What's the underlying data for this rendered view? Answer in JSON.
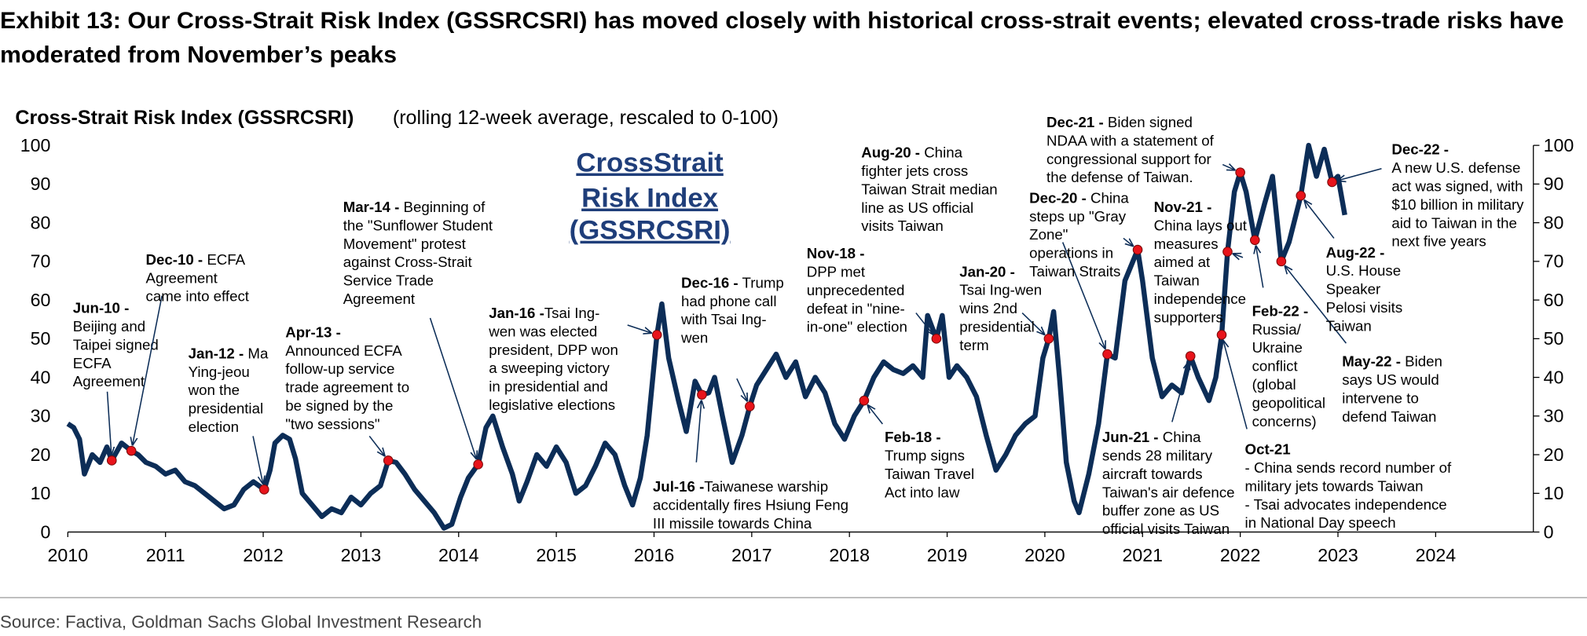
{
  "chart_data": {
    "type": "line",
    "title": [
      "Exhibit 13: Our Cross-Strait Risk Index (GSSRCSRI) has moved closely with historical cross-strait events; elevated cross-trade risks have",
      "moderated from November’s peaks"
    ],
    "chart_title": "Cross-Strait Risk Index (GSSRCSRI)",
    "chart_subtitle": "(rolling 12-week average, rescaled to 0-100)",
    "inset_label": [
      "CrossStrait",
      "Risk Index",
      "(GSSRCSRI)"
    ],
    "source": "Source: Factiva, Goldman Sachs Global Investment Research",
    "color": "#0c2d57",
    "marker_color": "#e8141b",
    "xlim": [
      2010,
      2025
    ],
    "xticks": [
      2010,
      2011,
      2012,
      2013,
      2014,
      2015,
      2016,
      2017,
      2018,
      2019,
      2020,
      2021,
      2022,
      2023,
      2024
    ],
    "ylim": [
      0,
      100
    ],
    "yticks": [
      0,
      10,
      20,
      30,
      40,
      50,
      60,
      70,
      80,
      90,
      100
    ],
    "y2lim": [
      0,
      100
    ],
    "y2ticks": [
      0,
      10,
      20,
      30,
      40,
      50,
      60,
      70,
      80,
      90,
      100
    ],
    "x": [
      2010.0,
      2010.06,
      2010.12,
      2010.17,
      2010.25,
      2010.33,
      2010.4,
      2010.45,
      2010.55,
      2010.65,
      2010.72,
      2010.8,
      2010.9,
      2011.0,
      2011.1,
      2011.2,
      2011.3,
      2011.4,
      2011.5,
      2011.6,
      2011.7,
      2011.8,
      2011.9,
      2012.01,
      2012.07,
      2012.12,
      2012.2,
      2012.27,
      2012.33,
      2012.4,
      2012.5,
      2012.6,
      2012.7,
      2012.8,
      2012.9,
      2013.0,
      2013.1,
      2013.2,
      2013.28,
      2013.36,
      2013.45,
      2013.55,
      2013.65,
      2013.75,
      2013.85,
      2013.93,
      2014.02,
      2014.1,
      2014.2,
      2014.28,
      2014.35,
      2014.45,
      2014.55,
      2014.62,
      2014.7,
      2014.8,
      2014.9,
      2015.0,
      2015.1,
      2015.2,
      2015.3,
      2015.4,
      2015.5,
      2015.6,
      2015.7,
      2015.78,
      2015.86,
      2015.93,
      2016.03,
      2016.08,
      2016.15,
      2016.25,
      2016.33,
      2016.42,
      2016.49,
      2016.56,
      2016.62,
      2016.7,
      2016.8,
      2016.9,
      2016.98,
      2017.05,
      2017.15,
      2017.25,
      2017.35,
      2017.45,
      2017.55,
      2017.65,
      2017.75,
      2017.85,
      2017.95,
      2018.05,
      2018.15,
      2018.25,
      2018.35,
      2018.45,
      2018.55,
      2018.65,
      2018.75,
      2018.8,
      2018.89,
      2018.95,
      2019.02,
      2019.1,
      2019.2,
      2019.3,
      2019.4,
      2019.5,
      2019.6,
      2019.7,
      2019.8,
      2019.9,
      2019.98,
      2020.04,
      2020.09,
      2020.15,
      2020.22,
      2020.3,
      2020.35,
      2020.45,
      2020.55,
      2020.64,
      2020.72,
      2020.82,
      2020.95,
      2021.0,
      2021.1,
      2021.2,
      2021.3,
      2021.4,
      2021.49,
      2021.57,
      2021.68,
      2021.75,
      2021.81,
      2021.87,
      2021.94,
      2022.0,
      2022.06,
      2022.15,
      2022.25,
      2022.33,
      2022.42,
      2022.5,
      2022.57,
      2022.62,
      2022.7,
      2022.78,
      2022.86,
      2022.94,
      2023.0,
      2023.07
    ],
    "values": [
      28,
      27,
      24,
      15,
      20,
      18,
      22,
      18.5,
      23,
      21,
      20,
      18,
      17,
      15,
      16,
      13,
      12,
      10,
      8,
      6,
      7,
      11,
      13,
      11,
      16,
      23,
      25,
      24,
      19,
      10,
      7,
      4,
      6,
      5,
      9,
      7,
      10,
      12,
      18.5,
      18,
      15,
      11,
      8,
      5,
      1,
      2,
      9,
      14,
      17.5,
      27,
      30,
      22,
      15,
      8,
      13,
      20,
      17,
      22,
      18,
      10,
      12,
      17,
      23,
      20,
      12,
      7,
      14,
      25,
      51,
      59,
      45,
      34,
      26,
      39,
      35.5,
      36,
      40,
      30,
      18,
      25,
      32.5,
      38,
      42,
      46,
      40,
      44,
      35,
      40,
      36,
      28,
      24,
      30,
      34,
      40,
      44,
      42,
      41,
      43,
      40,
      56,
      50,
      56,
      40,
      43,
      40,
      35,
      25,
      16,
      20,
      25,
      28,
      30,
      45,
      50,
      57,
      40,
      18,
      8,
      5,
      15,
      28,
      46,
      45,
      65,
      73,
      65,
      45,
      35,
      38,
      36,
      45.5,
      40,
      34,
      40,
      51,
      72.5,
      88,
      93,
      88,
      75.5,
      85,
      92,
      70,
      75,
      82,
      87,
      100,
      92,
      99,
      90.5,
      92,
      82
    ],
    "annotations": [
      {
        "label": "Jun-10 -",
        "lines": [
          "Beijing and",
          "Taipei signed",
          "ECFA",
          "Agreement"
        ],
        "x": 2010.45,
        "y": 18.5
      },
      {
        "label": "Dec-10 -",
        "rest": " ECFA",
        "lines": [
          "Agreement",
          "came into effect"
        ],
        "x": 2010.65,
        "y": 21
      },
      {
        "label": "Jan-12 -",
        "rest": " Ma",
        "lines": [
          "Ying-jeou",
          "won the",
          "presidential",
          "election"
        ],
        "x": 2012.01,
        "y": 11
      },
      {
        "label": "Apr-13 -",
        "lines": [
          "Announced ECFA",
          "follow-up service",
          "trade agreement to",
          "be signed by the",
          "\"two sessions\""
        ],
        "x": 2013.28,
        "y": 18.5
      },
      {
        "label": "Mar-14 -",
        "rest": " Beginning of",
        "lines": [
          "the \"Sunflower Student",
          "Movement\" protest",
          "against Cross-Strait",
          "Service Trade",
          "Agreement"
        ],
        "x": 2014.2,
        "y": 17.5
      },
      {
        "label": "Jan-16 -",
        "rest": "Tsai Ing-",
        "lines": [
          "wen was elected",
          "president, DPP won",
          "a sweeping victory",
          "in presidential and",
          "legislative elections"
        ],
        "x": 2016.03,
        "y": 51
      },
      {
        "label": "Jul-16 -",
        "rest": "Taiwanese warship",
        "lines": [
          "accidentally fires Hsiung Feng",
          "III missile towards China"
        ],
        "x": 2016.49,
        "y": 35.5
      },
      {
        "label": "Dec-16 -",
        "rest": " Trump",
        "lines": [
          "had phone call",
          "with Tsai Ing-",
          "wen"
        ],
        "x": 2016.98,
        "y": 32.5
      },
      {
        "label": "Feb-18 -",
        "lines": [
          "Trump signs",
          "Taiwan Travel",
          "Act into law"
        ],
        "x": 2018.15,
        "y": 34
      },
      {
        "label": "Nov-18 -",
        "lines": [
          "DPP met",
          "unprecedented",
          "defeat in \"nine-",
          "in-one\" election"
        ],
        "x": 2018.89,
        "y": 50
      },
      {
        "label": "Jan-20 -",
        "lines": [
          "Tsai Ing-wen",
          "wins 2nd",
          "presidential",
          "term"
        ],
        "x": 2020.04,
        "y": 50
      },
      {
        "label": "Aug-20 -",
        "rest": " China",
        "lines": [
          "fighter jets cross",
          "Taiwan Strait median",
          "line as US official",
          "visits Taiwan"
        ],
        "x": 2020.64,
        "y": 46
      },
      {
        "label": "Dec-20 -",
        "rest": " China",
        "lines": [
          "steps up \"Gray",
          "Zone\"",
          "operations in",
          "Taiwan Straits"
        ],
        "x": 2020.95,
        "y": 73
      },
      {
        "label": "Jun-21 -",
        "rest": " China",
        "lines": [
          "sends 28 military",
          "aircraft towards",
          "Taiwan's air defence",
          "buffer zone as US",
          "official visits Taiwan"
        ],
        "x": 2021.49,
        "y": 45.5
      },
      {
        "label": "Oct-21",
        "lines": [
          "- China sends record number of",
          "military jets towards Taiwan",
          "- Tsai advocates independence",
          "in National Day speech"
        ],
        "x": 2021.81,
        "y": 51
      },
      {
        "label": "Nov-21 -",
        "lines": [
          "China lays out",
          "measures",
          "aimed at",
          "Taiwan",
          "independence",
          "supporters"
        ],
        "x": 2021.87,
        "y": 72.5
      },
      {
        "label": "Dec-21 -",
        "rest": " Biden signed",
        "lines": [
          "NDAA with a statement of",
          "congressional support for",
          "the defense of Taiwan."
        ],
        "x": 2022.0,
        "y": 93
      },
      {
        "label": "Feb-22 -",
        "lines": [
          "Russia/",
          "Ukraine",
          "conflict",
          "(global",
          "geopolitical",
          "concerns)"
        ],
        "x": 2022.15,
        "y": 75.5
      },
      {
        "label": "May-22 -",
        "rest": " Biden",
        "lines": [
          "says US would",
          "intervene to",
          "defend Taiwan"
        ],
        "x": 2022.42,
        "y": 70
      },
      {
        "label": "Aug-22 -",
        "lines": [
          "U.S. House",
          "Speaker",
          "Pelosi visits",
          "Taiwan"
        ],
        "x": 2022.62,
        "y": 87
      },
      {
        "label": "Dec-22 -",
        "lines": [
          "A new U.S. defense",
          "act was signed, with",
          "$10 billion in military",
          "aid to Taiwan in the",
          "next five years"
        ],
        "x": 2022.94,
        "y": 90.5
      }
    ]
  }
}
